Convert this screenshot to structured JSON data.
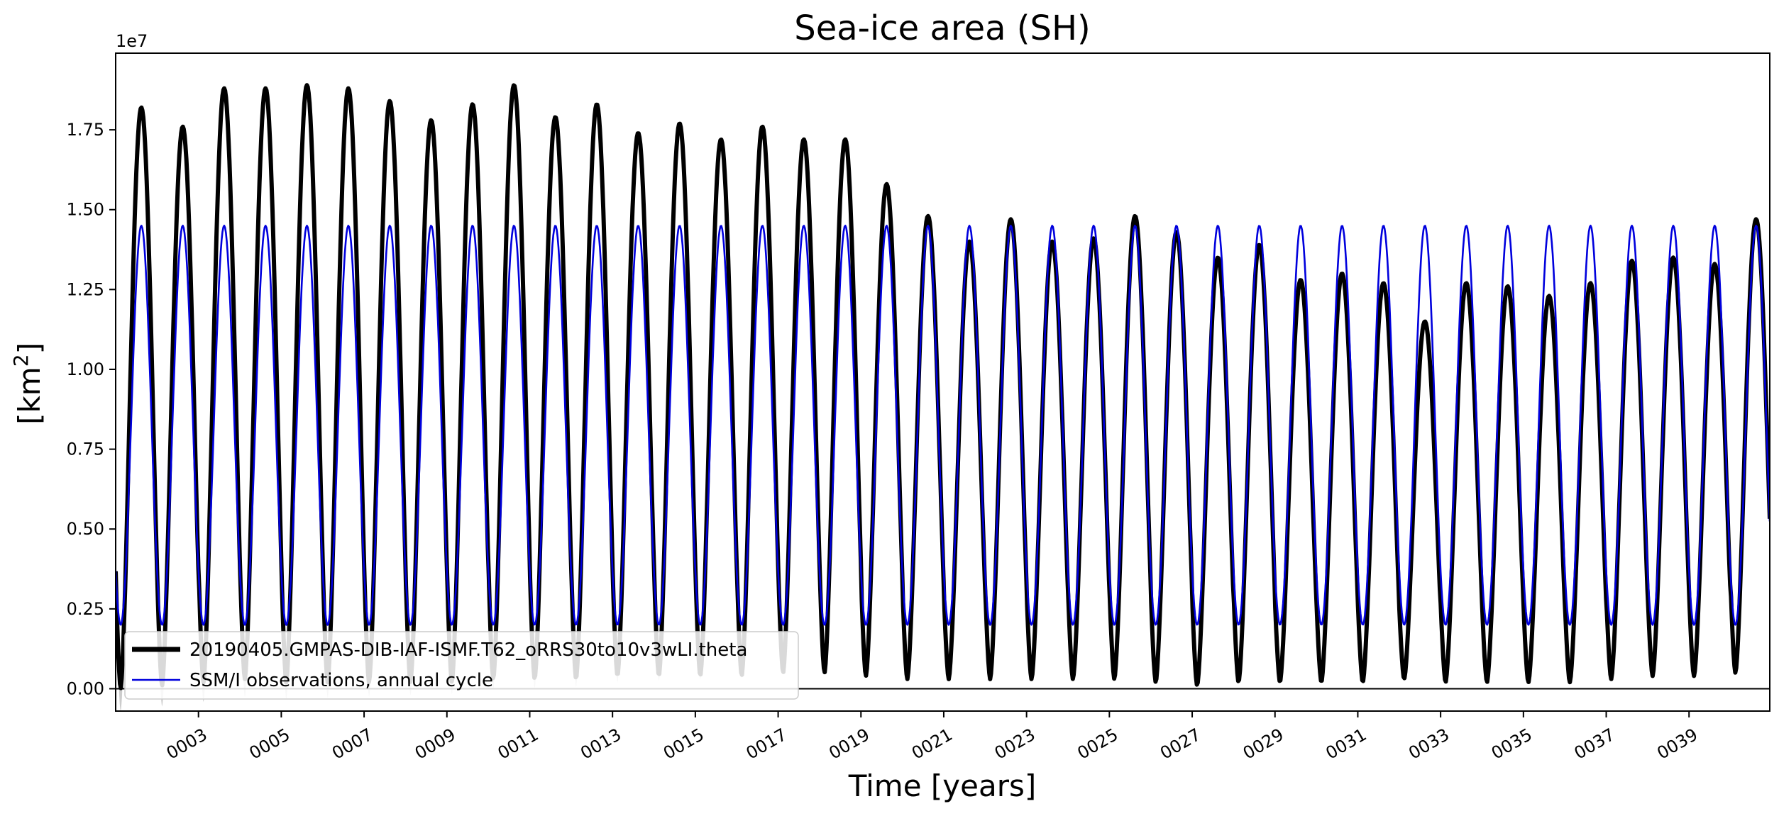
{
  "chart_data": {
    "type": "line",
    "title": "Sea-ice area (SH)",
    "xlabel": "Time [years]",
    "ylabel": "[km",
    "ylabel_superscript": "2",
    "ylabel_close": "]",
    "y_offset_label": "1e7",
    "xlim": [
      1.0,
      40.95
    ],
    "ylim": [
      -0.07,
      1.99
    ],
    "yticks": [
      0.0,
      0.25,
      0.5,
      0.75,
      1.0,
      1.25,
      1.5,
      1.75
    ],
    "ytick_labels": [
      "0.00",
      "0.25",
      "0.50",
      "0.75",
      "1.00",
      "1.25",
      "1.50",
      "1.75"
    ],
    "xticks": [
      3,
      5,
      7,
      9,
      11,
      13,
      15,
      17,
      19,
      21,
      23,
      25,
      27,
      29,
      31,
      33,
      35,
      37,
      39
    ],
    "xtick_labels": [
      "0003",
      "0005",
      "0007",
      "0009",
      "0011",
      "0013",
      "0015",
      "0017",
      "0019",
      "0021",
      "0023",
      "0025",
      "0027",
      "0029",
      "0031",
      "0033",
      "0035",
      "0037",
      "0039"
    ],
    "legend_position": "lower-left",
    "series": [
      {
        "name": "20190405.GMPAS-DIB-IAF-ISMF.T62_oRRS30to10v3wLI.theta",
        "color": "#000000",
        "line_width": "thick",
        "annual_maxima": [
          1.82,
          1.76,
          1.88,
          1.88,
          1.89,
          1.88,
          1.84,
          1.78,
          1.83,
          1.89,
          1.79,
          1.83,
          1.74,
          1.77,
          1.72,
          1.76,
          1.72,
          1.72,
          1.58,
          1.48,
          1.4,
          1.47,
          1.4,
          1.41,
          1.48,
          1.43,
          1.35,
          1.39,
          1.28,
          1.3,
          1.27,
          1.15,
          1.27,
          1.26,
          1.23,
          1.27,
          1.34,
          1.35,
          1.33,
          1.47
        ],
        "annual_minima": [
          0.0,
          0.01,
          0.02,
          0.03,
          0.02,
          0.02,
          0.02,
          0.02,
          0.02,
          0.03,
          0.03,
          0.03,
          0.04,
          0.04,
          0.04,
          0.04,
          0.05,
          0.05,
          0.04,
          0.03,
          0.03,
          0.03,
          0.03,
          0.03,
          0.03,
          0.02,
          0.01,
          0.02,
          0.02,
          0.02,
          0.02,
          0.03,
          0.02,
          0.02,
          0.02,
          0.02,
          0.03,
          0.04,
          0.04,
          0.05
        ]
      },
      {
        "name": "SSM/I observations, annual cycle",
        "color": "#0000dd",
        "line_width": "thin",
        "annual_maximum": 1.45,
        "annual_minimum": 0.2
      }
    ],
    "reference_line": {
      "y": 0.0,
      "color": "#000000"
    },
    "spread_band": {
      "color": "#cccccc"
    }
  }
}
